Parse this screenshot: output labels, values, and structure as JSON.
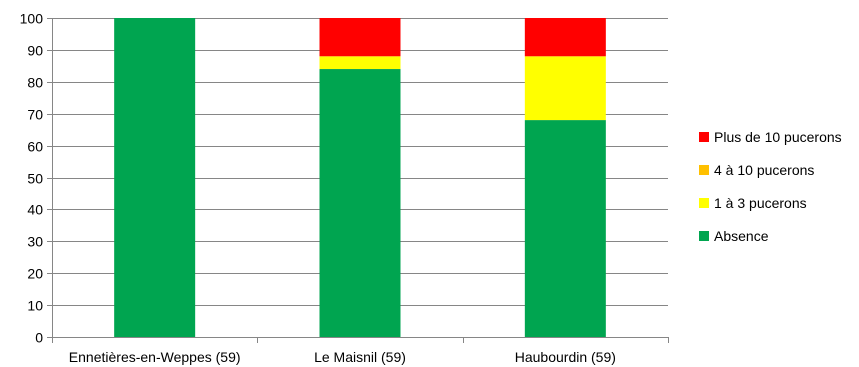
{
  "chart_data": {
    "type": "bar",
    "stacked": true,
    "categories": [
      "Ennetières-en-Weppes (59)",
      "Le Maisnil (59)",
      "Haubourdin (59)"
    ],
    "series": [
      {
        "name": "Absence",
        "values": [
          100,
          84,
          68
        ],
        "color": "#00a550"
      },
      {
        "name": "1 à 3 pucerons",
        "values": [
          0,
          4,
          20
        ],
        "color": "#ffff00"
      },
      {
        "name": "4 à 10 pucerons",
        "values": [
          0,
          0,
          0
        ],
        "color": "#ffc000"
      },
      {
        "name": "Plus de 10 pucerons",
        "values": [
          0,
          12,
          12
        ],
        "color": "#ff0000"
      }
    ],
    "legend_order": [
      "Plus de 10 pucerons",
      "4 à 10 pucerons",
      "1 à 3 pucerons",
      "Absence"
    ],
    "ylim": [
      0,
      100
    ],
    "yticks": [
      0,
      10,
      20,
      30,
      40,
      50,
      60,
      70,
      80,
      90,
      100
    ],
    "grid": true,
    "legend_position": "right"
  }
}
